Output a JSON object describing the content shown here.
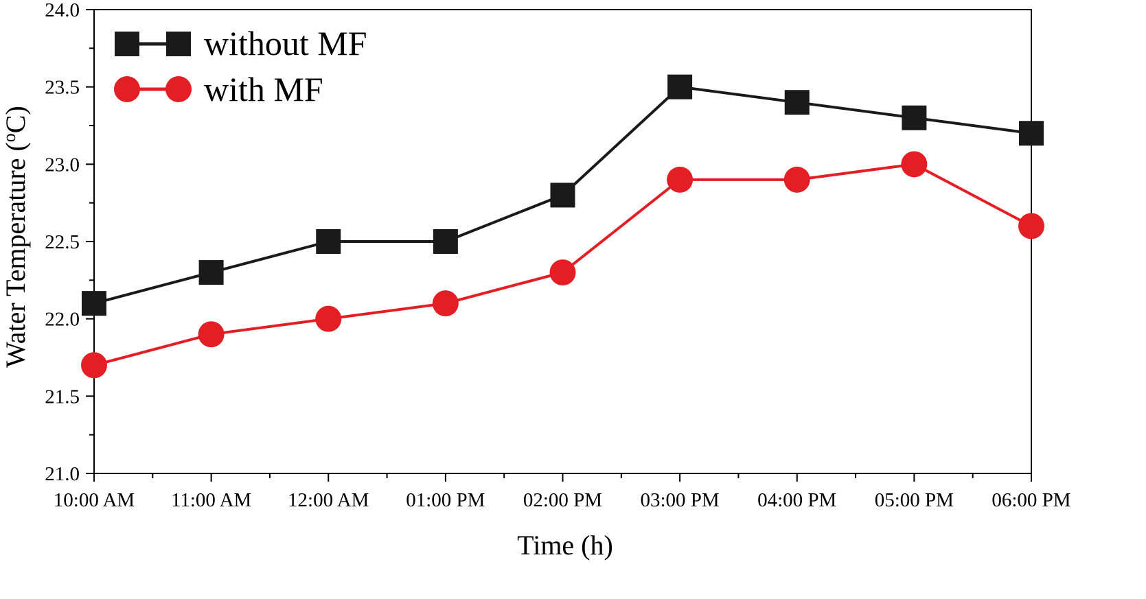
{
  "chart_data": {
    "type": "line",
    "title": "",
    "xlabel": "Time (h)",
    "ylabel_main": "Water Temperature (",
    "ylabel_sup": "o",
    "ylabel_end": "C)",
    "categories": [
      "10:00 AM",
      "11:00 AM",
      "12:00 AM",
      "01:00 PM",
      "02:00 PM",
      "03:00 PM",
      "04:00 PM",
      "05:00 PM",
      "06:00 PM"
    ],
    "ylim": [
      21.0,
      24.0
    ],
    "yticks": [
      "21.0",
      "21.5",
      "22.0",
      "22.5",
      "23.0",
      "23.5",
      "24.0"
    ],
    "grid": false,
    "legend_position": "top-left",
    "series": [
      {
        "name": "without MF",
        "marker": "square",
        "color": "#1a1a1a",
        "values": [
          22.1,
          22.3,
          22.5,
          22.5,
          22.8,
          23.5,
          23.4,
          23.3,
          23.2
        ]
      },
      {
        "name": "with MF",
        "marker": "circle",
        "color": "#e31e24",
        "values": [
          21.7,
          21.9,
          22.0,
          22.1,
          22.3,
          22.9,
          22.9,
          23.0,
          22.6
        ]
      }
    ]
  }
}
